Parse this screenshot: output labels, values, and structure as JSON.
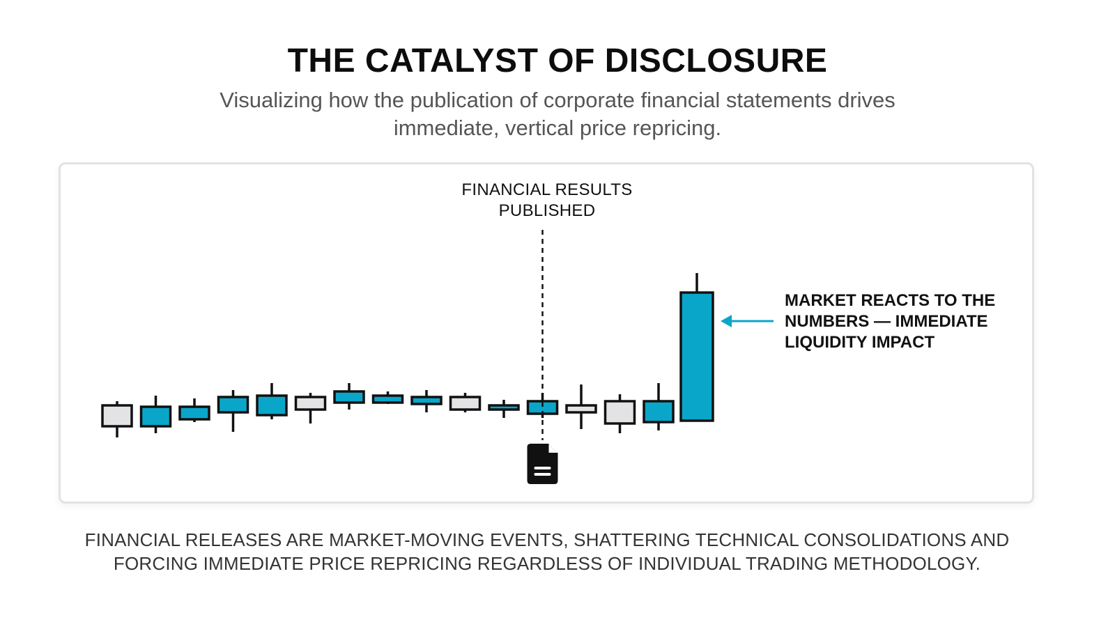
{
  "header": {
    "title": "THE CATALYST OF DISCLOSURE",
    "subtitle": "Visualizing how the publication of corporate financial statements drives immediate, vertical price repricing."
  },
  "annotations": {
    "event_label": "FINANCIAL RESULTS PUBLISHED",
    "reaction_label": "MARKET REACTS TO THE NUMBERS — IMMEDIATE LIQUIDITY IMPACT",
    "event_icon": "document-icon",
    "arrow_icon": "arrow-left-icon"
  },
  "footer": {
    "caption": "FINANCIAL RELEASES ARE MARKET-MOVING EVENTS, SHATTERING TECHNICAL CONSOLIDATIONS AND FORCING IMMEDIATE PRICE REPRICING REGARDLESS OF INDIVIDUAL TRADING METHODOLOGY."
  },
  "colors": {
    "bullish": "#0aa6c9",
    "bearish": "#e3e3e6",
    "outline": "#111111",
    "arrow": "#0aa6c9"
  },
  "chart_data": {
    "type": "candlestick",
    "event_index": 11,
    "candles": [
      {
        "open": 60,
        "close": 45,
        "high": 63,
        "low": 37
      },
      {
        "open": 45,
        "close": 59,
        "high": 67,
        "low": 40
      },
      {
        "open": 50,
        "close": 59,
        "high": 65,
        "low": 48
      },
      {
        "open": 55,
        "close": 66,
        "high": 71,
        "low": 41
      },
      {
        "open": 53,
        "close": 67,
        "high": 76,
        "low": 50
      },
      {
        "open": 66,
        "close": 57,
        "high": 69,
        "low": 47
      },
      {
        "open": 62,
        "close": 70,
        "high": 76,
        "low": 57
      },
      {
        "open": 62,
        "close": 67,
        "high": 70,
        "low": 61
      },
      {
        "open": 61,
        "close": 66,
        "high": 71,
        "low": 55
      },
      {
        "open": 66,
        "close": 57,
        "high": 69,
        "low": 55
      },
      {
        "open": 57,
        "close": 60,
        "high": 64,
        "low": 51
      },
      {
        "open": 54,
        "close": 63,
        "high": 69,
        "low": 51
      },
      {
        "open": 60,
        "close": 55,
        "high": 75,
        "low": 43
      },
      {
        "open": 63,
        "close": 47,
        "high": 68,
        "low": 40
      },
      {
        "open": 48,
        "close": 63,
        "high": 76,
        "low": 42
      },
      {
        "open": 49,
        "close": 141,
        "high": 155,
        "low": 49
      }
    ]
  }
}
